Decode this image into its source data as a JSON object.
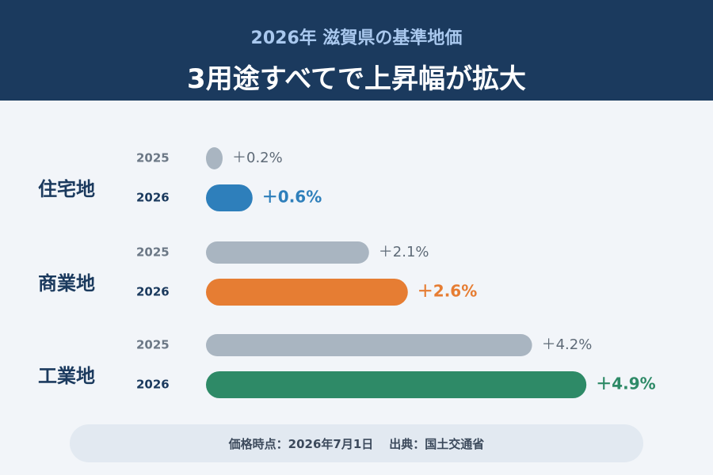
{
  "header": {
    "subtitle": "2026年 滋賀県の基準地価",
    "title": "3用途すべてで上昇幅が拡大"
  },
  "chart_data": {
    "type": "bar",
    "orientation": "horizontal",
    "grid": false,
    "legend": "none",
    "categories": [
      "住宅地",
      "商業地",
      "工業地"
    ],
    "series": [
      {
        "name": "2025",
        "values": [
          0.2,
          2.1,
          4.2
        ],
        "labels": [
          "＋0.2%",
          "＋2.1%",
          "＋4.2%"
        ]
      },
      {
        "name": "2026",
        "values": [
          0.6,
          2.6,
          4.9
        ],
        "labels": [
          "＋0.6%",
          "＋2.6%",
          "＋4.9%"
        ]
      }
    ],
    "colors": {
      "2025": "#a9b5c1",
      "2026": [
        "#2e7fbb",
        "#e67d33",
        "#2e8a67"
      ],
      "text_2025": "#5f6b78",
      "category": "#1b3a5e"
    },
    "xlim": [
      0,
      5
    ]
  },
  "footer": {
    "date": "価格時点：2026年7月1日",
    "source": "出典：国土交通省"
  }
}
